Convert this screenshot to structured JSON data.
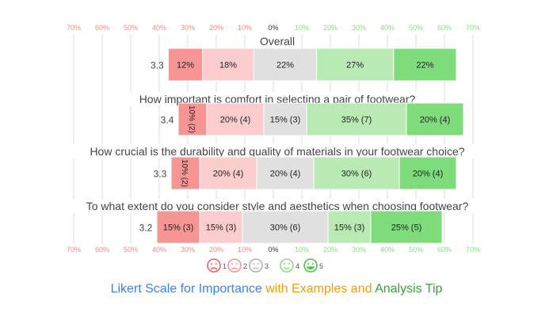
{
  "colors": {
    "negative_axis": "#f48a8a",
    "positive_axis": "#8fdc86",
    "neutral_axis": "#333333",
    "grid": "#dddddd",
    "scale": [
      "#f79595",
      "#fbcdcd",
      "#e0e0e0",
      "#b9eab3",
      "#7fdc7a"
    ],
    "title_blue": "#3b82f6",
    "title_orange": "#f59e0b",
    "title_green": "#35a335"
  },
  "footer": {
    "part1": "Likert Scale for Importance",
    "part2": " with Examples and",
    "part3": " Analysis Tip"
  },
  "chart_data": {
    "type": "bar",
    "orientation": "horizontal-diverging-stacked",
    "axis": {
      "ticks": [
        -70,
        -60,
        -50,
        -40,
        -30,
        -20,
        -10,
        0,
        10,
        20,
        30,
        40,
        50,
        60,
        70
      ],
      "tick_labels": [
        "70%",
        "60%",
        "50%",
        "40%",
        "30%",
        "20%",
        "10%",
        "0%",
        "10%",
        "20%",
        "30%",
        "40%",
        "50%",
        "60%",
        "70%"
      ],
      "xlim": [
        -70,
        70
      ],
      "grid": true
    },
    "legend": {
      "position": "bottom",
      "items": [
        {
          "icon": "very-sad-face-icon",
          "label": "1"
        },
        {
          "icon": "sad-face-icon",
          "label": "2"
        },
        {
          "icon": "neutral-face-icon",
          "label": "3"
        },
        {
          "icon": "happy-face-icon",
          "label": "4"
        },
        {
          "icon": "very-happy-face-icon",
          "label": "5"
        }
      ]
    },
    "rows": [
      {
        "question": "Overall",
        "mean": "3.3",
        "values": [
          12,
          18,
          22,
          27,
          22
        ],
        "labels": [
          "12%",
          "18%",
          "22%",
          "27%",
          "22%"
        ]
      },
      {
        "question": "How important is comfort in selecting a pair of footwear?",
        "mean": "3.4",
        "values": [
          10,
          20,
          15,
          35,
          20
        ],
        "labels": [
          "10% (2)",
          "20% (4)",
          "15% (3)",
          "35% (7)",
          "20% (4)"
        ]
      },
      {
        "question": "How crucial is the durability and quality of materials in your footwear choice?",
        "mean": "3.3",
        "values": [
          10,
          20,
          20,
          30,
          20
        ],
        "labels": [
          "10% (2)",
          "20% (4)",
          "20% (4)",
          "30% (6)",
          "20% (4)"
        ]
      },
      {
        "question": "To what extent do you consider style and aesthetics when choosing footwear?",
        "mean": "3.2",
        "values": [
          15,
          15,
          30,
          15,
          25
        ],
        "labels": [
          "15% (3)",
          "15% (3)",
          "30% (6)",
          "15% (3)",
          "25% (5)"
        ]
      }
    ]
  }
}
